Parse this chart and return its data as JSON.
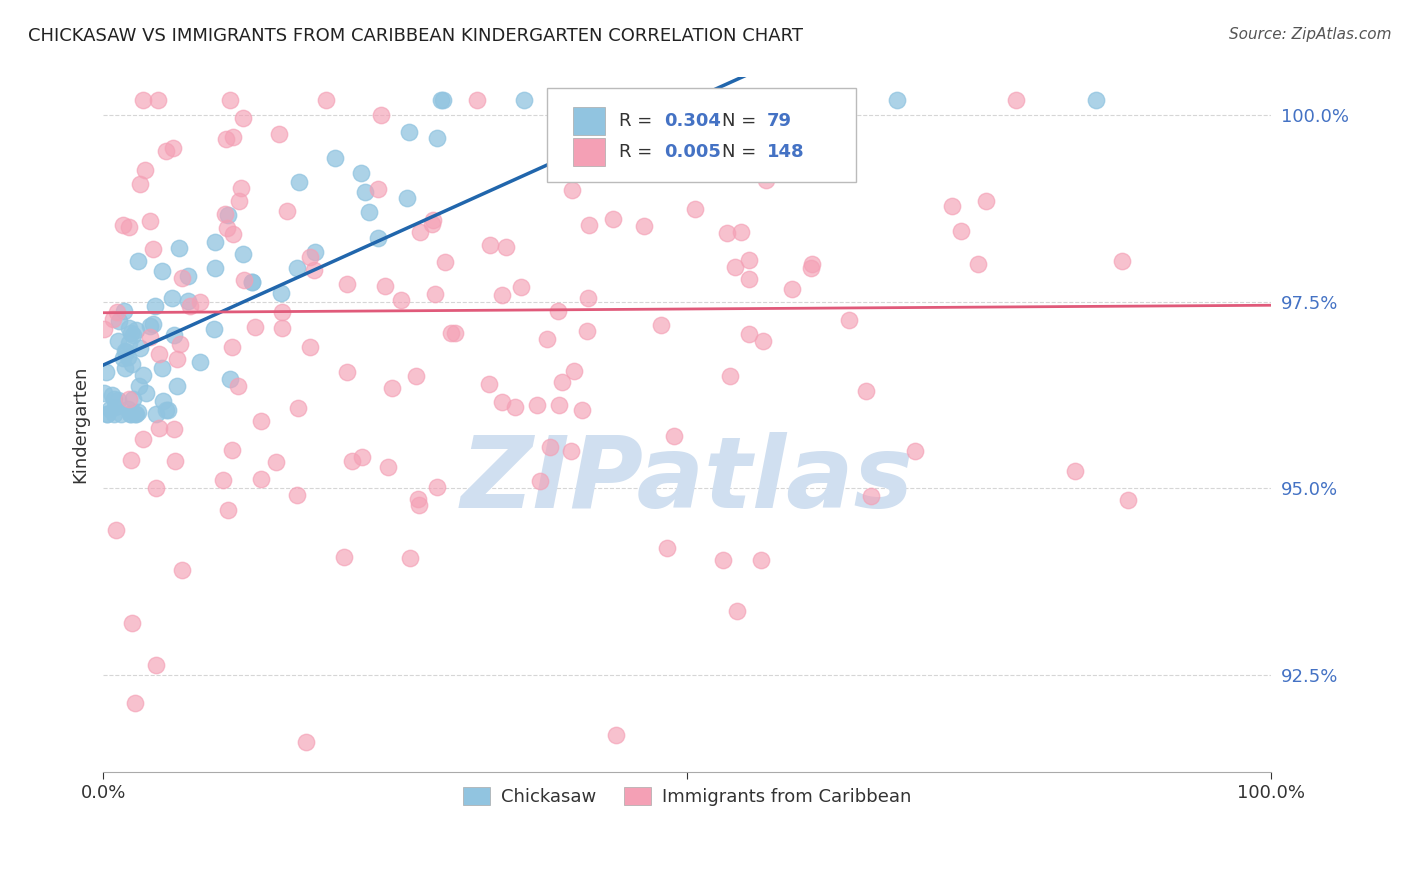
{
  "title": "CHICKASAW VS IMMIGRANTS FROM CARIBBEAN KINDERGARTEN CORRELATION CHART",
  "source_text": "Source: ZipAtlas.com",
  "ylabel": "Kindergarten",
  "x_min": 0.0,
  "x_max": 1.0,
  "y_min": 0.912,
  "y_max": 1.005,
  "y_ticks": [
    0.925,
    0.95,
    0.975,
    1.0
  ],
  "y_tick_labels": [
    "92.5%",
    "95.0%",
    "97.5%",
    "100.0%"
  ],
  "x_ticks": [
    0.0,
    0.5,
    1.0
  ],
  "x_tick_labels": [
    "0.0%",
    "",
    "100.0%"
  ],
  "color_blue": "#91c4e0",
  "color_pink": "#f4a0b5",
  "trendline_blue_color": "#2166ac",
  "trendline_pink_color": "#e05a7a",
  "watermark_text": "ZIPatlas",
  "watermark_color": "#d0dff0",
  "background_color": "#ffffff",
  "grid_color": "#cccccc",
  "axis_label_color": "#4472c4",
  "title_color": "#222222",
  "legend_color_blue": "#91c4e0",
  "legend_color_pink": "#f4a0b5",
  "legend_r1": "0.304",
  "legend_n1": "79",
  "legend_r2": "0.005",
  "legend_n2": "148"
}
